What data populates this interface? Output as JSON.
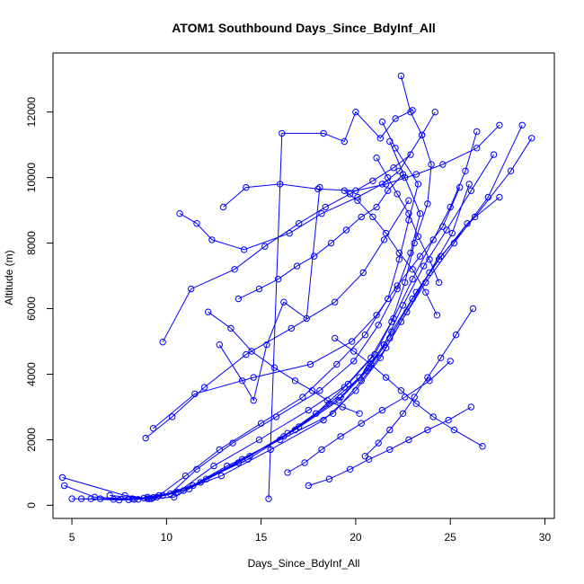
{
  "chart_data": {
    "type": "scatter",
    "title": "ATOM1 Southbound Days_Since_BdyInf_All",
    "xlabel": "Days_Since_BdyInf_All",
    "ylabel": "Altitude (m)",
    "xlim": [
      4,
      30.5
    ],
    "ylim": [
      -400,
      13800
    ],
    "x_ticks": [
      5,
      10,
      15,
      20,
      25,
      30
    ],
    "y_ticks": [
      0,
      2000,
      4000,
      6000,
      8000,
      10000,
      12000
    ],
    "x_tick_labels": [
      "5",
      "10",
      "15",
      "20",
      "25",
      "30"
    ],
    "y_tick_labels": [
      "0",
      "2000",
      "4000",
      "6000",
      "8000",
      "10000",
      "12000"
    ],
    "series_color": "#0000ff",
    "marker": "open-circle",
    "connected": true,
    "grid": false,
    "series": [
      {
        "x": [
          4.5,
          7.8,
          9.2,
          10.4,
          12.1,
          14.3,
          16.2,
          17.9,
          19.4,
          20.8,
          21.9,
          22.6,
          23.1,
          23.8,
          24.0,
          23.5,
          22.9,
          22.4
        ],
        "y": [
          850,
          300,
          200,
          250,
          800,
          1400,
          2100,
          2800,
          3600,
          4500,
          5600,
          6800,
          8000,
          9200,
          10400,
          11300,
          12000,
          13100
        ]
      },
      {
        "x": [
          4.6,
          6.2,
          8.3,
          9.6,
          11.0,
          12.8,
          15.0,
          17.2,
          19.0,
          20.5,
          21.7,
          22.3,
          22.8,
          23.3,
          22.1,
          21.4
        ],
        "y": [
          600,
          250,
          180,
          300,
          900,
          1700,
          2500,
          3300,
          4300,
          5200,
          6300,
          7500,
          8700,
          9800,
          10900,
          11700
        ]
      },
      {
        "x": [
          5.0,
          7.2,
          8.8,
          10.2,
          11.6,
          13.5,
          15.8,
          18.1,
          19.9,
          21.2,
          22.2,
          22.9,
          23.4,
          22.6,
          21.8
        ],
        "y": [
          200,
          180,
          220,
          350,
          1100,
          1900,
          2700,
          3500,
          4400,
          5500,
          6600,
          7700,
          8900,
          10000,
          11100
        ]
      },
      {
        "x": [
          5.5,
          7.5,
          9.0,
          10.6,
          12.5,
          14.9,
          17.5,
          19.6,
          21.0,
          22.0,
          23.0,
          24.1,
          25.0,
          25.8,
          26.4
        ],
        "y": [
          200,
          160,
          200,
          400,
          1200,
          2000,
          2900,
          3700,
          4600,
          5700,
          6900,
          8100,
          9100,
          10200,
          11400
        ]
      },
      {
        "x": [
          6.0,
          8.0,
          9.3,
          11.2,
          13.8,
          16.4,
          18.6,
          20.2,
          21.5,
          22.5,
          23.6,
          24.8,
          26.1,
          27.3
        ],
        "y": [
          200,
          170,
          240,
          500,
          1300,
          2200,
          3100,
          3900,
          4900,
          6100,
          7300,
          8400,
          9600,
          10700
        ]
      },
      {
        "x": [
          6.5,
          8.5,
          9.8,
          11.8,
          14.4,
          17.0,
          19.2,
          20.7,
          21.9,
          23.2,
          24.5,
          26.3,
          28.2,
          29.3
        ],
        "y": [
          200,
          180,
          300,
          700,
          1500,
          2400,
          3300,
          4200,
          5300,
          6500,
          7600,
          8800,
          10200,
          11200
        ]
      },
      {
        "x": [
          7.0,
          9.1,
          10.5,
          12.9,
          15.5,
          18.3,
          20.0,
          21.3,
          22.4,
          23.7,
          25.2,
          27.0,
          28.8
        ],
        "y": [
          300,
          200,
          380,
          900,
          1700,
          2600,
          3500,
          4500,
          5600,
          6800,
          8000,
          9400,
          11600
        ]
      },
      {
        "x": [
          8.2,
          9.5,
          11.4,
          14.0,
          16.8,
          19.1,
          20.6,
          21.8,
          23.0,
          24.4,
          25.9,
          27.6
        ],
        "y": [
          200,
          250,
          600,
          1400,
          2300,
          3200,
          4100,
          5100,
          6300,
          7500,
          8600,
          9400
        ]
      },
      {
        "x": [
          9.0,
          10.9,
          13.2,
          16.0,
          18.8,
          20.3,
          21.6,
          22.7,
          23.9,
          25.1,
          26.0
        ],
        "y": [
          250,
          450,
          1200,
          2000,
          2800,
          3800,
          4800,
          5900,
          7100,
          8300,
          9800
        ]
      },
      {
        "x": [
          9.3,
          11.5,
          14.6,
          17.6,
          19.8,
          21.1,
          22.2,
          23.4,
          24.6,
          25.5
        ],
        "y": [
          2350,
          3400,
          3900,
          4300,
          5000,
          5800,
          6700,
          7600,
          8500,
          9700
        ]
      },
      {
        "x": [
          8.9,
          10.3,
          12.0,
          14.2,
          16.6,
          18.9,
          20.4,
          21.5,
          22.8
        ],
        "y": [
          2050,
          2700,
          3600,
          4600,
          5400,
          6200,
          7100,
          8100,
          9300
        ]
      },
      {
        "x": [
          9.8,
          11.3,
          13.6,
          15.2,
          17.0,
          18.4,
          19.7,
          20.9,
          22.0,
          22.9
        ],
        "y": [
          4980,
          6600,
          7200,
          7900,
          8600,
          9100,
          9500,
          9900,
          10300,
          10700
        ]
      },
      {
        "x": [
          10.7,
          11.6,
          12.4,
          14.1,
          16.5,
          18.2,
          20.1,
          21.4,
          22.3,
          23.5,
          24.2
        ],
        "y": [
          8900,
          8600,
          8100,
          7800,
          8300,
          8900,
          9400,
          9800,
          10200,
          11300,
          12000
        ]
      },
      {
        "x": [
          13.0,
          14.2,
          16.0,
          18.0,
          20.0,
          21.6,
          23.2,
          24.6,
          26.4,
          27.6
        ],
        "y": [
          9100,
          9700,
          9800,
          9650,
          9600,
          9800,
          10100,
          10400,
          10900,
          11600
        ]
      },
      {
        "x": [
          15.4,
          16.1,
          18.3,
          19.4,
          20.0,
          21.3,
          22.1,
          23.0
        ],
        "y": [
          200,
          11350,
          11350,
          11100,
          12000,
          11200,
          11800,
          12050
        ]
      },
      {
        "x": [
          12.8,
          14.0,
          14.6,
          15.3,
          16.2,
          17.4,
          18.1
        ],
        "y": [
          4900,
          3800,
          3200,
          4900,
          6200,
          5700,
          9700
        ]
      },
      {
        "x": [
          13.8,
          14.9,
          15.9,
          16.9,
          17.8,
          18.7,
          19.5,
          20.3,
          21.1,
          21.7,
          22.5
        ],
        "y": [
          6300,
          6600,
          6900,
          7300,
          7600,
          8000,
          8400,
          8800,
          9100,
          9600,
          10100
        ]
      },
      {
        "x": [
          12.2,
          13.4,
          14.5,
          15.7,
          16.8,
          17.7,
          18.5,
          19.3,
          20.2
        ],
        "y": [
          5900,
          5400,
          4700,
          4200,
          3800,
          3500,
          3200,
          3000,
          2800
        ]
      },
      {
        "x": [
          20.5,
          21.2,
          21.8,
          22.5,
          23.1,
          23.8,
          24.5,
          25.3,
          26.2
        ],
        "y": [
          1500,
          1900,
          2300,
          2800,
          3300,
          3900,
          4500,
          5200,
          6000
        ]
      },
      {
        "x": [
          16.4,
          17.3,
          18.2,
          19.2,
          20.3,
          21.4,
          22.6,
          23.9,
          25.0
        ],
        "y": [
          1000,
          1300,
          1700,
          2100,
          2500,
          2900,
          3300,
          3800,
          4400
        ]
      },
      {
        "x": [
          19.4,
          20.1,
          20.9,
          21.6,
          22.3,
          23.0,
          23.7,
          24.3
        ],
        "y": [
          9600,
          9300,
          8800,
          8300,
          7700,
          7200,
          6500,
          5800
        ]
      },
      {
        "x": [
          21.1,
          21.7,
          22.2,
          22.8,
          23.3,
          23.9,
          24.4
        ],
        "y": [
          10600,
          10000,
          9500,
          8900,
          8200,
          7500,
          6800
        ]
      },
      {
        "x": [
          18.9,
          19.9,
          20.8,
          21.6,
          22.4,
          23.2,
          24.1,
          25.2,
          26.7
        ],
        "y": [
          5100,
          4700,
          4300,
          3900,
          3500,
          3100,
          2700,
          2300,
          1800
        ]
      },
      {
        "x": [
          17.5,
          18.6,
          19.7,
          20.7,
          21.8,
          22.8,
          23.8,
          24.9,
          26.1
        ],
        "y": [
          600,
          800,
          1100,
          1400,
          1700,
          2000,
          2300,
          2600,
          3000
        ]
      }
    ]
  }
}
